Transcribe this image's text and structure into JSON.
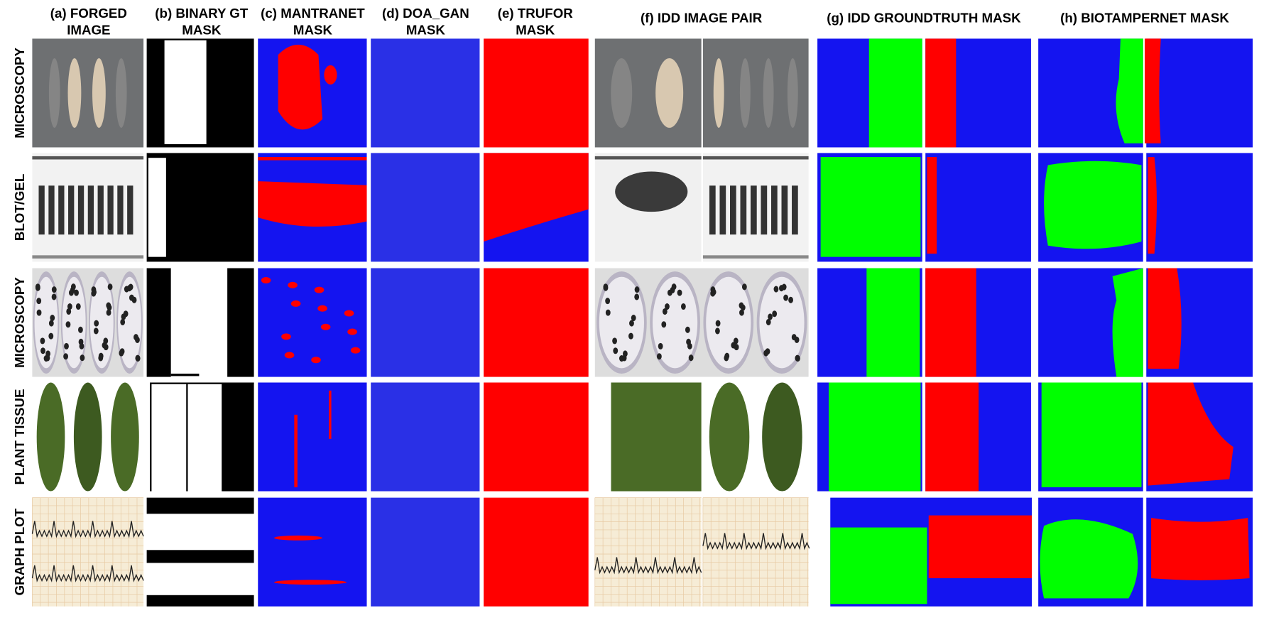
{
  "headers": [
    [
      "(a) FORGED",
      "IMAGE"
    ],
    [
      "(b) BINARY GT",
      "MASK"
    ],
    [
      "(c) MANTRANET",
      "MASK"
    ],
    [
      "(d) DOA_GAN",
      "MASK"
    ],
    [
      "(e) TRUFOR",
      "MASK"
    ],
    [
      "(f) IDD IMAGE PAIR"
    ],
    [
      "(g) IDD GROUNDTRUTH MASK"
    ],
    [
      "(h) BIOTAMPERNET MASK"
    ]
  ],
  "row_labels": [
    "MICROSCOPY",
    "BLOT/GEL",
    "MICROSCOPY",
    "PLANT TISSUE",
    "GRAPH PLOT"
  ]
}
